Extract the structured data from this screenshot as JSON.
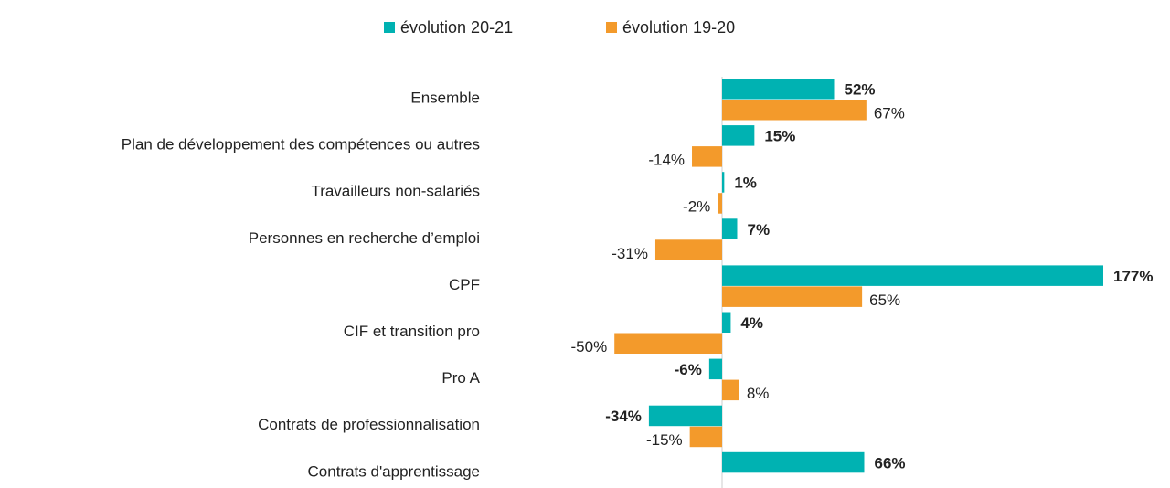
{
  "chart_data": {
    "type": "hbar",
    "categories": [
      "Ensemble",
      "Plan de développement des compétences ou autres",
      "Travailleurs non-salariés",
      "Personnes en recherche d’emploi",
      "CPF",
      "CIF et transition pro",
      "Pro A",
      "Contrats de professionnalisation",
      "Contrats d'apprentissage"
    ],
    "series": [
      {
        "name": "évolution 20-21",
        "color": "#00b2b2",
        "values": [
          52,
          15,
          1,
          7,
          177,
          4,
          -6,
          -34,
          66
        ],
        "value_labels": [
          "52%",
          "15%",
          "1%",
          "7%",
          "177%",
          "4%",
          "-6%",
          "-34%",
          "66%"
        ]
      },
      {
        "name": "évolution 19-20",
        "color": "#f39a2b",
        "values": [
          67,
          -14,
          -2,
          -31,
          65,
          -50,
          8,
          -15,
          null
        ],
        "value_labels": [
          "67%",
          "-14%",
          "-2%",
          "-31%",
          "65%",
          "-50%",
          "8%",
          "-15%",
          null
        ]
      }
    ],
    "legend": "top"
  }
}
